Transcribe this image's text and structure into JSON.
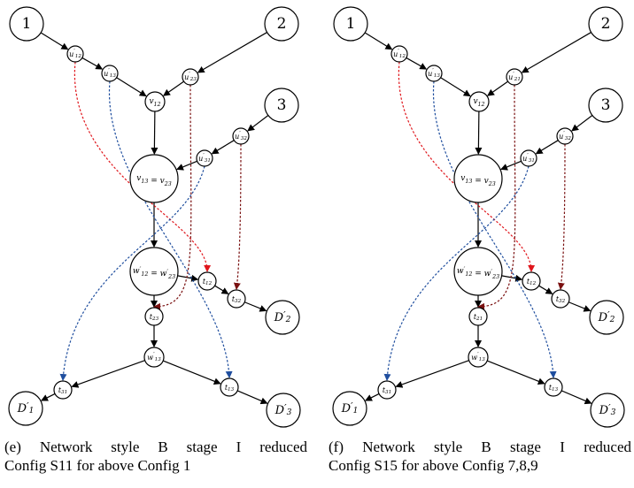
{
  "panels": [
    {
      "id": "e",
      "caption_line1": "(e) Network style B stage I reduced",
      "caption_line2": "Config S11 for above Config 1",
      "nodes": {
        "s1": "1",
        "s2": "2",
        "s3": "3",
        "u12": "u′12",
        "u13": "u′13",
        "v12": "v12",
        "u23": "u′23",
        "u32": "u′32",
        "u31": "u′31",
        "v13": "v13 = v23",
        "w12": "w′12 = w′23",
        "t12": "t12",
        "t32": "t32",
        "t2x": "t23",
        "w13": "w′13",
        "t31": "t31",
        "t13": "t13",
        "d1": "D′1",
        "d2": "D′2",
        "d3": "D′3"
      }
    },
    {
      "id": "f",
      "caption_line1": "(f) Network style B stage I reduced",
      "caption_line2": "Config S15 for above Config 7,8,9",
      "nodes": {
        "s1": "1",
        "s2": "2",
        "s3": "3",
        "u12": "u′12",
        "u13": "u′13",
        "v12": "v12",
        "u23": "u′21",
        "u32": "u′32",
        "u31": "u′31",
        "v13": "v13 = v23",
        "w12": "w′12 = w′23",
        "t12": "t12",
        "t32": "t32",
        "t2x": "t21",
        "w13": "w′13",
        "t31": "t31",
        "t13": "t13",
        "d1": "D′1",
        "d2": "D′2",
        "d3": "D′3"
      }
    }
  ],
  "colors": {
    "red": "#e0161c",
    "blue": "#1f4e9e",
    "darkred": "#7a1010",
    "black": "#000000"
  }
}
